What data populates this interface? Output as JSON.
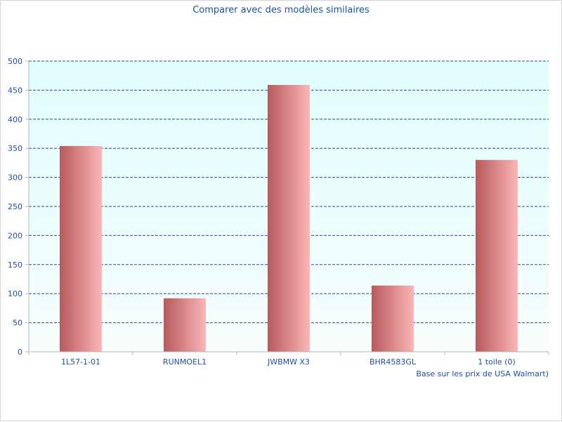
{
  "chart_data": {
    "type": "bar",
    "title": "Comparer avec des modèles similaires",
    "categories": [
      "1L57-1-01",
      "RUNMOEL1",
      "JWBMW X3",
      "BHR4583GL",
      "1 toile (0)"
    ],
    "values": [
      354,
      92,
      459,
      114,
      330
    ],
    "ylim": [
      0,
      500
    ],
    "yticks": [
      0,
      50,
      100,
      150,
      200,
      250,
      300,
      350,
      400,
      450,
      500
    ],
    "grid": true,
    "note": "Base sur les prix de USA Walmart)",
    "colors": {
      "text": "#1f4fa8",
      "grid": "#2a4f8f",
      "axis": "#b0b8c4",
      "bar_dark": "#b85a5c",
      "bar_light": "#fbb6b6",
      "plot_top": "#e0fdfd",
      "plot_bottom": "#f8fdfd"
    }
  }
}
